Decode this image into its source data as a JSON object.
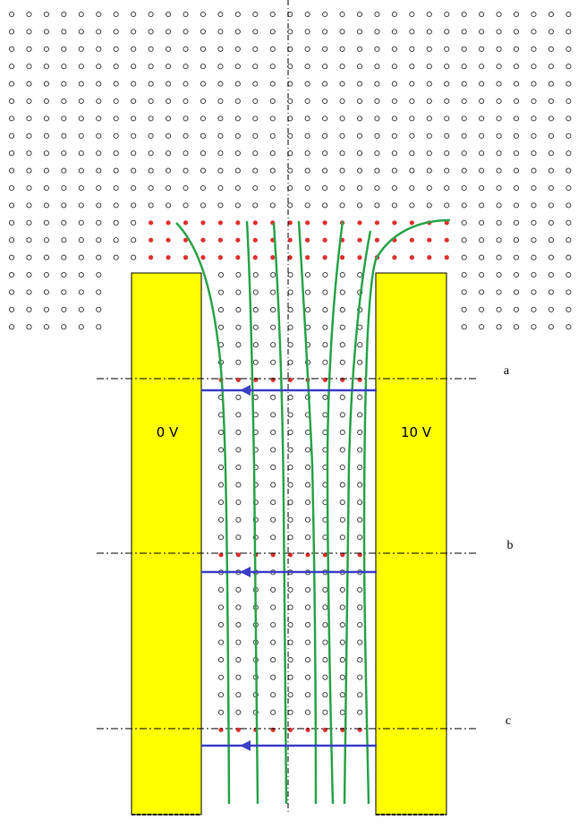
{
  "electrodes": {
    "left": {
      "voltage_label": "0 V",
      "color": "#ffff00"
    },
    "right": {
      "voltage_label": "10 V",
      "color": "#ffff00"
    }
  },
  "section_lines": [
    {
      "label": "a"
    },
    {
      "label": "b"
    },
    {
      "label": "c"
    }
  ],
  "colors": {
    "grid_dot": "#333333",
    "charge_dot": "#e03030",
    "streamline": "#2aa44a",
    "field_arrow": "#3b3fc8",
    "axis_line": "#000000"
  }
}
